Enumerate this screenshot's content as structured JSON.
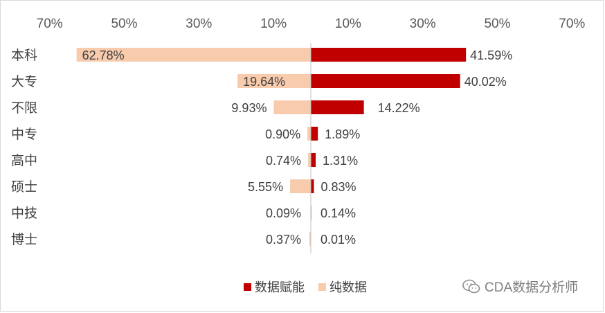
{
  "chart_data": {
    "type": "bar",
    "orientation": "horizontal-diverging",
    "title": "",
    "xlabel": "",
    "ylabel": "",
    "xlim_each_side": [
      0,
      70
    ],
    "tick_labels": [
      "70%",
      "50%",
      "30%",
      "10%",
      "10%",
      "30%",
      "50%",
      "70%"
    ],
    "tick_values": [
      -70,
      -50,
      -30,
      -10,
      10,
      30,
      50,
      70
    ],
    "categories": [
      "本科",
      "大专",
      "不限",
      "中专",
      "高中",
      "硕士",
      "中技",
      "博士"
    ],
    "series": [
      {
        "name": "数据赋能",
        "side": "right",
        "color": "#C00000",
        "values": [
          41.59,
          40.02,
          14.22,
          1.89,
          1.31,
          0.83,
          0.14,
          0.01
        ],
        "labels": [
          "41.59%",
          "40.02%",
          "14.22%",
          "1.89%",
          "1.31%",
          "0.83%",
          "0.14%",
          "0.01%"
        ]
      },
      {
        "name": "纯数据",
        "side": "left",
        "color": "#F8CBAD",
        "values": [
          62.78,
          19.64,
          9.93,
          0.9,
          0.74,
          5.55,
          0.09,
          0.37
        ],
        "labels": [
          "62.78%",
          "19.64%",
          "9.93%",
          "0.90%",
          "0.74%",
          "5.55%",
          "0.09%",
          "0.37%"
        ]
      }
    ],
    "legend_position": "bottom-center",
    "grid": false
  },
  "watermark": {
    "icon": "wechat-icon",
    "text": "CDA数据分析师"
  }
}
